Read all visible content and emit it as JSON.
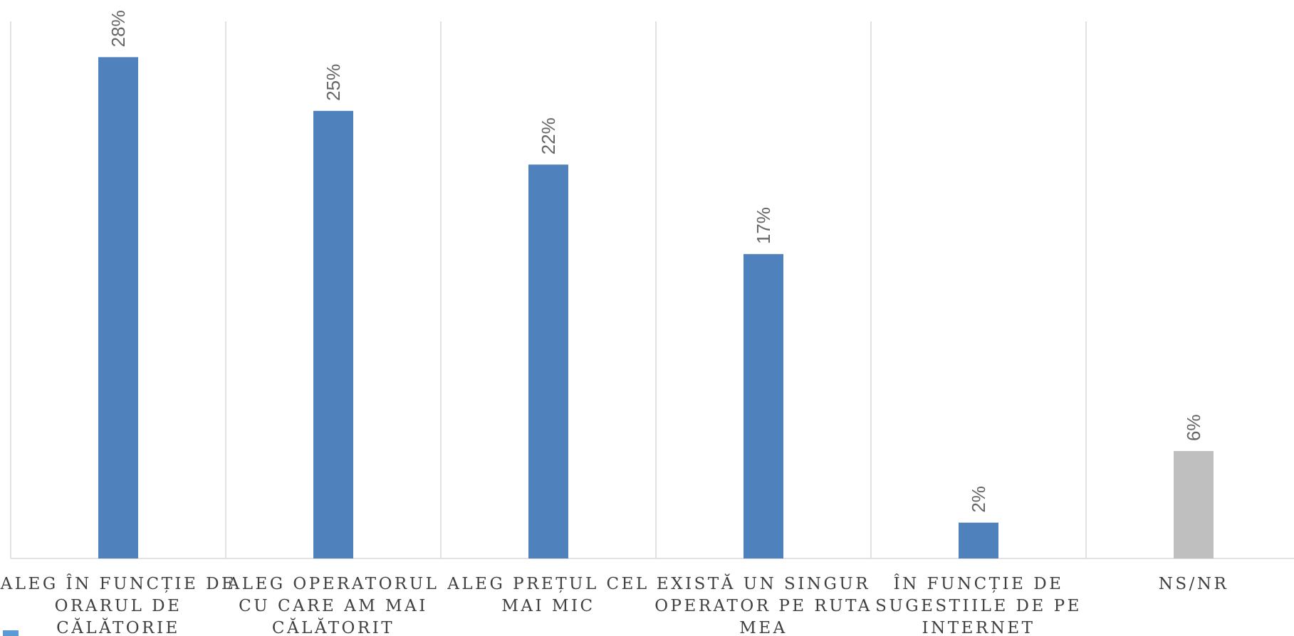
{
  "chart_data": {
    "type": "bar",
    "title": "",
    "xlabel": "",
    "ylabel": "",
    "ylim": [
      0,
      30
    ],
    "grid": "vertical category separators",
    "categories": [
      [
        "ALEG ÎN FUNCȚIE DE",
        "ORARUL DE",
        "CĂLĂTORIE"
      ],
      [
        "ALEG OPERATORUL",
        "CU CARE AM MAI",
        "CĂLĂTORIT"
      ],
      [
        "ALEG PREȚUL CEL",
        "MAI MIC"
      ],
      [
        "EXISTĂ UN SINGUR",
        "OPERATOR PE RUTA",
        "MEA"
      ],
      [
        "ÎN FUNCȚIE DE",
        "SUGESTIILE DE PE",
        "INTERNET"
      ],
      [
        "NS/NR"
      ]
    ],
    "values": [
      28,
      25,
      22,
      17,
      2,
      6
    ],
    "data_labels": [
      "28%",
      "25%",
      "22%",
      "17%",
      "2%",
      "6%"
    ],
    "colors": [
      "#4F81BD",
      "#4F81BD",
      "#4F81BD",
      "#4F81BD",
      "#4F81BD",
      "#BFBFBF"
    ]
  },
  "legend": {
    "marker_color": "#5B9BD5"
  }
}
